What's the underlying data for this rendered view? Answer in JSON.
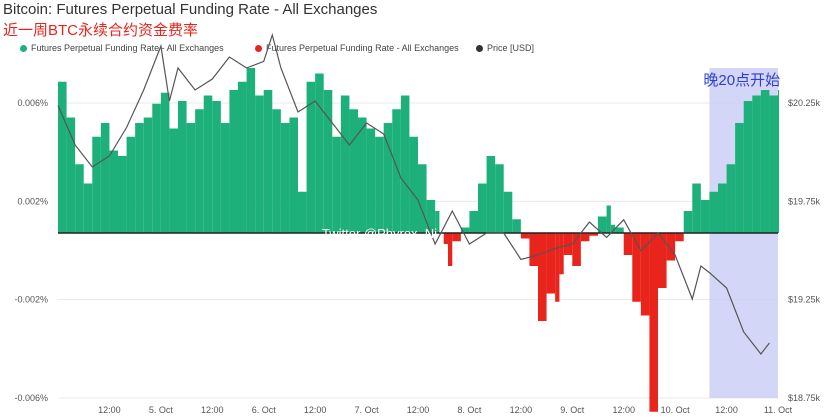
{
  "title": "Bitcoin: Futures Perpetual Funding Rate - All Exchanges",
  "subtitle": "近一周BTC永续合约资金费率",
  "legend": [
    {
      "label": "Futures Perpetual Funding Rate - All Exchanges",
      "color": "#1db07a"
    },
    {
      "label": "Futures Perpetual Funding Rate - All Exchanges",
      "color": "#e8241c"
    },
    {
      "label": "Price [USD]",
      "color": "#333333"
    }
  ],
  "annotation": "晚20点开始",
  "watermark": "Twitter @Phyrex_Ni",
  "chart_data": {
    "type": "bar",
    "x_labels": [
      "12:00",
      "5. Oct",
      "12:00",
      "6. Oct",
      "12:00",
      "7. Oct",
      "12:00",
      "8. Oct",
      "12:00",
      "9. Oct",
      "12:00",
      "10. Oct",
      "12:00",
      "11. Oct"
    ],
    "y_left_labels": [
      "0.006%",
      "0.002%",
      "-0.002%",
      "-0.006%"
    ],
    "y_right_labels": [
      "$20.25k",
      "$19.75k",
      "$19.25k",
      "$18.75k"
    ],
    "y_left_range": [
      -0.006,
      0.006
    ],
    "y_right_range": [
      18750,
      20250
    ],
    "x_range_hours": [
      0,
      168
    ],
    "funding_series": {
      "name": "Futures Perpetual Funding Rate - All Exchanges",
      "unit": "%",
      "x_hours": [
        0,
        2,
        4,
        6,
        8,
        10,
        12,
        14,
        16,
        18,
        20,
        22,
        24,
        26,
        28,
        30,
        32,
        34,
        36,
        38,
        40,
        42,
        44,
        46,
        48,
        50,
        52,
        54,
        56,
        58,
        60,
        62,
        64,
        66,
        68,
        70,
        72,
        74,
        76,
        78,
        80,
        82,
        84,
        86,
        88,
        89,
        90,
        91,
        92,
        94,
        96,
        98,
        100,
        102,
        104,
        106,
        108,
        110,
        112,
        114,
        116,
        117,
        118,
        120,
        122,
        124,
        126,
        128,
        129,
        130,
        132,
        134,
        136,
        138,
        140,
        142,
        144,
        146,
        148,
        150,
        152,
        154,
        156,
        158,
        160,
        162,
        164,
        166,
        168
      ],
      "values": [
        0.0055,
        0.0042,
        0.0025,
        0.0018,
        0.0035,
        0.004,
        0.003,
        0.0028,
        0.0035,
        0.004,
        0.0042,
        0.0047,
        0.0051,
        0.0038,
        0.0048,
        0.004,
        0.0045,
        0.005,
        0.0048,
        0.004,
        0.0052,
        0.0055,
        0.006,
        0.005,
        0.0052,
        0.0045,
        0.004,
        0.0042,
        0.0015,
        0.0055,
        0.0058,
        0.0052,
        0.0035,
        0.005,
        0.0045,
        0.0042,
        0.0038,
        0.0035,
        0.004,
        0.0045,
        0.005,
        0.0035,
        0.0025,
        0.0012,
        0.0008,
        0.0,
        -0.0004,
        -0.0012,
        -0.0003,
        0.0002,
        0.0008,
        0.0018,
        0.0028,
        0.0025,
        0.0015,
        0.0005,
        -0.0002,
        -0.0012,
        -0.0032,
        -0.0022,
        -0.0025,
        -0.0015,
        -0.0008,
        -0.0012,
        -0.0003,
        -0.0001,
        0.0006,
        0.001,
        0.0003,
        0.0002,
        -0.0008,
        -0.0025,
        -0.003,
        -0.0065,
        -0.002,
        -0.001,
        -0.0003,
        0.0008,
        0.0018,
        0.0012,
        0.0015,
        0.0018,
        0.0025,
        0.004,
        0.0048,
        0.005,
        0.0052,
        0.005,
        0.0052
      ]
    },
    "price_series": {
      "name": "Price [USD]",
      "unit": "USD",
      "x_hours": [
        0,
        4,
        8,
        12,
        16,
        20,
        24,
        26,
        28,
        32,
        36,
        40,
        44,
        48,
        50,
        52,
        56,
        60,
        64,
        68,
        72,
        76,
        80,
        84,
        88,
        92,
        96,
        100,
        104,
        108,
        112,
        116,
        120,
        124,
        128,
        132,
        136,
        140,
        144,
        148,
        150,
        152,
        156,
        160,
        164,
        166
      ],
      "values": [
        20080,
        19900,
        19800,
        19850,
        19980,
        20150,
        20350,
        20100,
        20250,
        20150,
        20200,
        20300,
        20250,
        20280,
        20400,
        20250,
        20050,
        20100,
        20000,
        19900,
        20000,
        19950,
        19750,
        19650,
        19450,
        19600,
        19450,
        19500,
        19500,
        19380,
        19400,
        19430,
        19450,
        19550,
        19480,
        19560,
        19420,
        19500,
        19400,
        19200,
        19350,
        19320,
        19250,
        19050,
        18950,
        19000
      ]
    },
    "highlight_band_hours": [
      152,
      168
    ]
  }
}
